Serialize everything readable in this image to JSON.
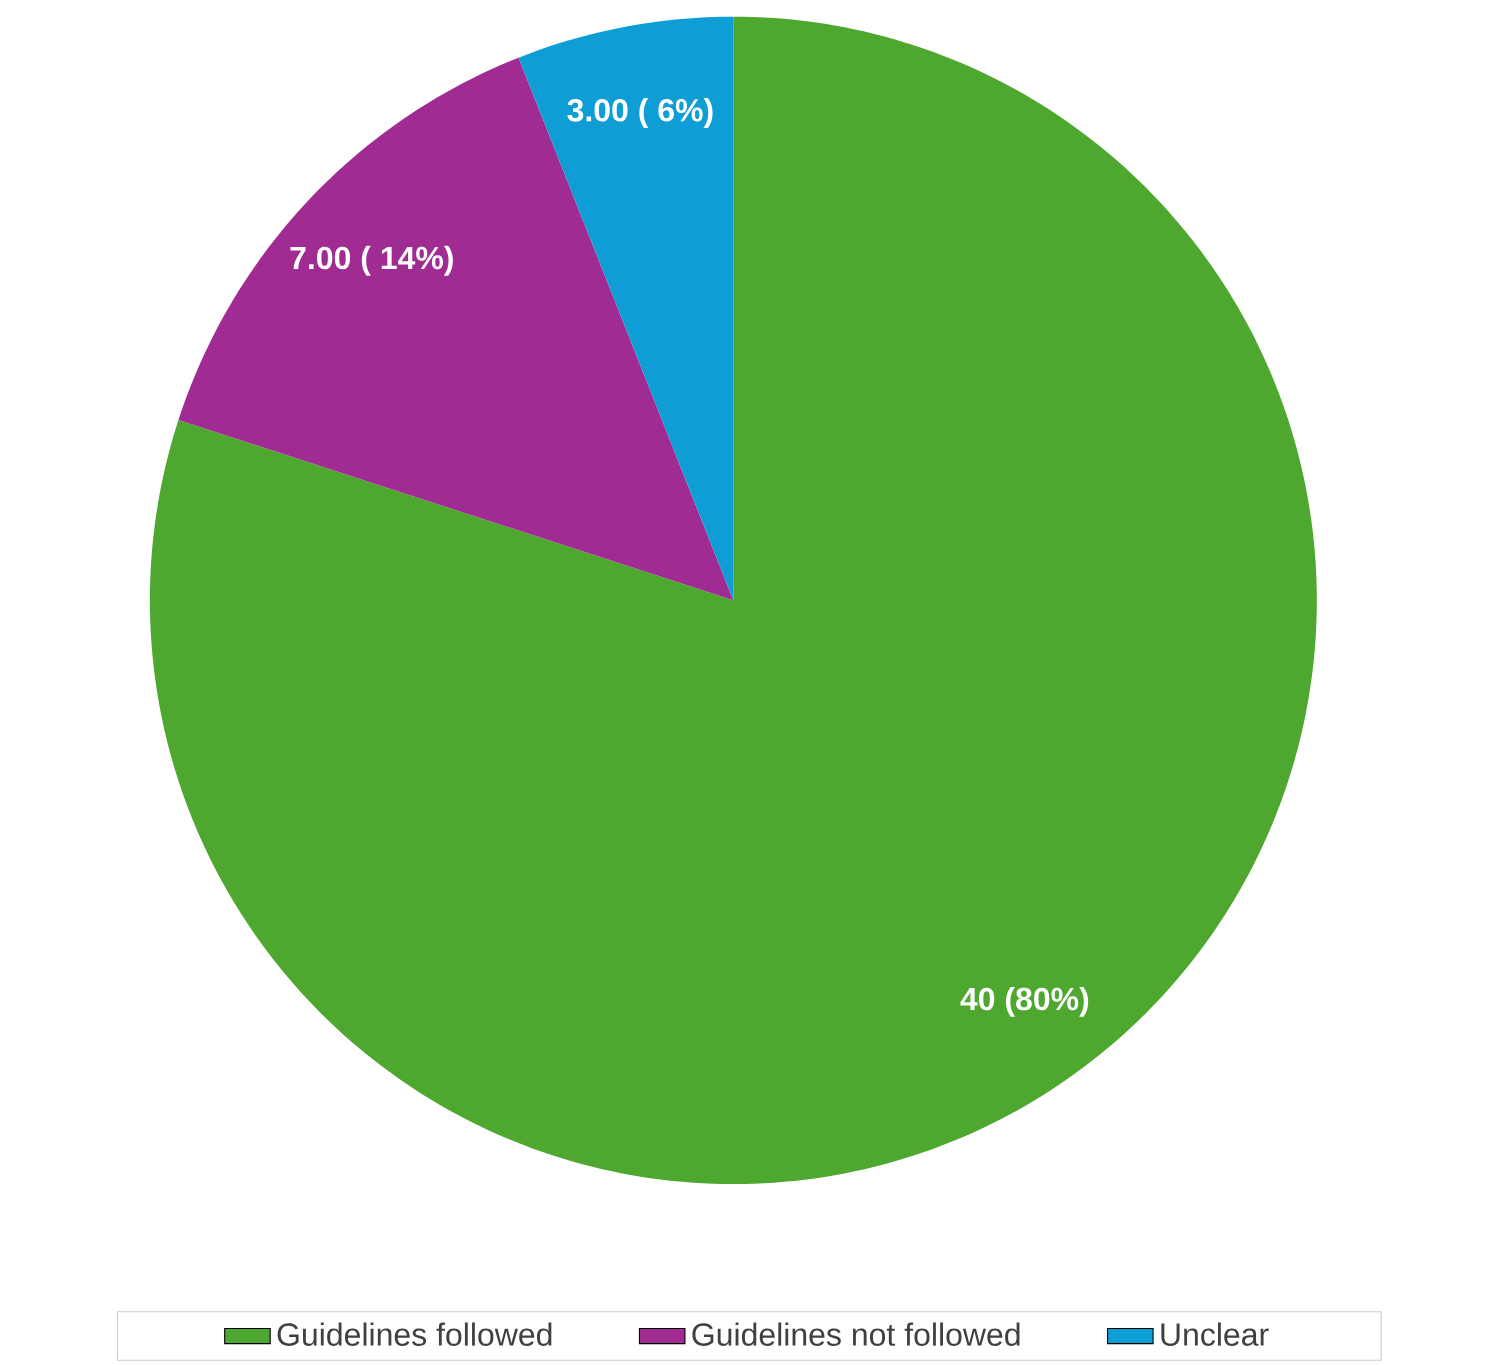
{
  "chart_data": {
    "type": "pie",
    "categories": [
      "Guidelines followed",
      "Guidelines not followed",
      "Unclear"
    ],
    "values": [
      40,
      7,
      3
    ],
    "colors": [
      "#4ea72e",
      "#a02b93",
      "#0e9ed5"
    ],
    "value_labels": [
      "40 (80%)",
      "7.00 ( 14%)",
      "3.00 ( 6%)"
    ],
    "legend": "bottom"
  }
}
